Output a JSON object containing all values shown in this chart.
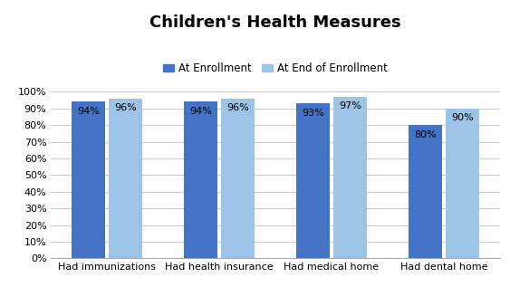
{
  "title": "Children's Health Measures",
  "categories": [
    "Had immunizations",
    "Had health insurance",
    "Had medical home",
    "Had dental home"
  ],
  "series": [
    {
      "label": "At Enrollment",
      "values": [
        0.94,
        0.94,
        0.93,
        0.8
      ],
      "color": "#4472C4"
    },
    {
      "label": "At End of Enrollment",
      "values": [
        0.96,
        0.96,
        0.97,
        0.9
      ],
      "color": "#9DC3E6"
    }
  ],
  "ylim": [
    0,
    1.0
  ],
  "yticks": [
    0.0,
    0.1,
    0.2,
    0.3,
    0.4,
    0.5,
    0.6,
    0.7,
    0.8,
    0.9,
    1.0
  ],
  "yticklabels": [
    "0%",
    "10%",
    "20%",
    "30%",
    "40%",
    "50%",
    "60%",
    "70%",
    "80%",
    "90%",
    "100%"
  ],
  "bar_width": 0.3,
  "title_fontsize": 13,
  "tick_fontsize": 8,
  "bar_label_fontsize": 8,
  "legend_fontsize": 8.5,
  "background_color": "#FFFFFF",
  "grid_color": "#CCCCCC",
  "label_formats": [
    [
      "94%",
      "94%",
      "93%",
      "80%"
    ],
    [
      "96%",
      "96%",
      "97%",
      "90%"
    ]
  ]
}
